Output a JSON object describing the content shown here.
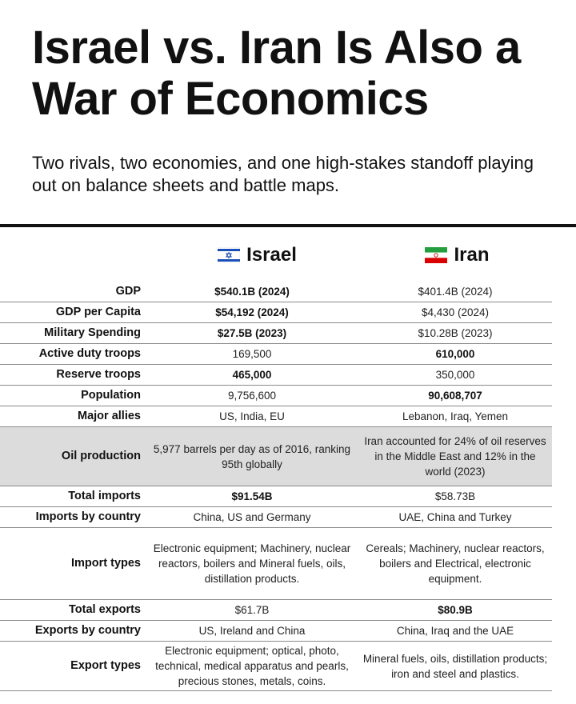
{
  "title": "Israel vs. Iran Is Also a War of Economics",
  "subtitle": "Two rivals, two economies, and one high-stakes standoff playing out on balance sheets and battle maps.",
  "columns": {
    "israel": {
      "name": "Israel",
      "flag": "israel-flag-icon"
    },
    "iran": {
      "name": "Iran",
      "flag": "iran-flag-icon"
    }
  },
  "colors": {
    "text": "#111111",
    "shaded_row": "#dcdcdc",
    "israel_blue": "#1b4fb8",
    "iran_green": "#239f40",
    "iran_red": "#da0000"
  },
  "chart_data": {
    "type": "table",
    "columns": [
      "",
      "Israel",
      "Iran"
    ],
    "rows": [
      {
        "label": "GDP",
        "israel": "$540.1B (2024)",
        "iran": "$401.4B (2024)",
        "bold": "israel"
      },
      {
        "label": "GDP per Capita",
        "israel": "$54,192 (2024)",
        "iran": "$4,430 (2024)",
        "bold": "israel"
      },
      {
        "label": "Military Spending",
        "israel": "$27.5B (2023)",
        "iran": "$10.28B (2023)",
        "bold": "israel"
      },
      {
        "label": "Active duty troops",
        "israel": "169,500",
        "iran": "610,000",
        "bold": "iran"
      },
      {
        "label": "Reserve troops",
        "israel": "465,000",
        "iran": "350,000",
        "bold": "israel"
      },
      {
        "label": "Population",
        "israel": "9,756,600",
        "iran": "90,608,707",
        "bold": "iran"
      },
      {
        "label": "Major allies",
        "israel": "US, India, EU",
        "iran": "Lebanon, Iraq, Yemen",
        "bold": ""
      },
      {
        "label": "Oil production",
        "israel": "5,977 barrels per day as of 2016, ranking 95th globally",
        "iran": "Iran accounted for 24% of oil reserves in the Middle East and 12% in the world (2023)",
        "bold": "",
        "shaded": true
      },
      {
        "label": "Total imports",
        "israel": "$91.54B",
        "iran": "$58.73B",
        "bold": "israel"
      },
      {
        "label": "Imports by country",
        "israel": "China, US and Germany",
        "iran": "UAE, China and Turkey",
        "bold": ""
      },
      {
        "label": "Import types",
        "israel": "Electronic equipment; Machinery, nuclear reactors, boilers and Mineral fuels, oils, distillation products.",
        "iran": "Cereals; Machinery, nuclear reactors, boilers and Electrical, electronic equipment.",
        "bold": ""
      },
      {
        "label": "Total exports",
        "israel": "$61.7B",
        "iran": "$80.9B",
        "bold": "iran"
      },
      {
        "label": "Exports by country",
        "israel": "US, Ireland and China",
        "iran": "China, Iraq and the UAE",
        "bold": ""
      },
      {
        "label": "Export types",
        "israel": "Electronic equipment; optical, photo, technical, medical apparatus and pearls, precious stones, metals, coins.",
        "iran": "Mineral fuels, oils, distillation products; iron and steel and plastics.",
        "bold": ""
      }
    ]
  }
}
